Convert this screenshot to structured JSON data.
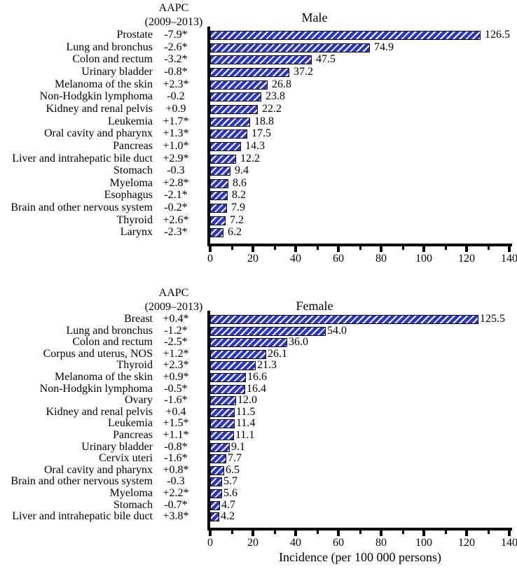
{
  "figure": {
    "aapc_header_line1": "AAPC",
    "aapc_header_line2": "(2009–2013)",
    "xlabel": "Incidence (per 100 000 persons)",
    "colors": {
      "bar_fill": "#2B36C8",
      "bar_hatch": "#FFFFFF",
      "bar_border": "#000000",
      "axis": "#000000",
      "text": "#000000"
    }
  },
  "chart_data": [
    {
      "type": "bar",
      "orientation": "horizontal",
      "title": "Male",
      "value_axis_label": "Incidence (per 100 000 persons)",
      "xlim": [
        0,
        140
      ],
      "xticks": [
        0,
        20,
        40,
        60,
        80,
        100,
        120,
        140
      ],
      "minor_xticks": [
        10,
        30,
        50,
        70,
        90,
        110,
        130
      ],
      "grid": false,
      "rows": [
        {
          "label": "Prostate",
          "aapc": "-7.9*",
          "value": 126.5,
          "display": "126.5"
        },
        {
          "label": "Lung and bronchus",
          "aapc": "-2.6*",
          "value": 74.9,
          "display": "74.9"
        },
        {
          "label": "Colon and rectum",
          "aapc": "-3.2*",
          "value": 47.5,
          "display": "47.5"
        },
        {
          "label": "Urinary bladder",
          "aapc": "-0.8*",
          "value": 37.2,
          "display": "37.2"
        },
        {
          "label": "Melanoma of the skin",
          "aapc": "+2.3*",
          "value": 26.8,
          "display": "26.8"
        },
        {
          "label": "Non-Hodgkin lymphoma",
          "aapc": "-0.2",
          "value": 23.8,
          "display": "23.8"
        },
        {
          "label": "Kidney and renal pelvis",
          "aapc": "+0.9",
          "value": 22.2,
          "display": "22.2"
        },
        {
          "label": "Leukemia",
          "aapc": "+1.7*",
          "value": 18.8,
          "display": "18.8"
        },
        {
          "label": "Oral cavity and pharynx",
          "aapc": "+1.3*",
          "value": 17.5,
          "display": "17.5"
        },
        {
          "label": "Pancreas",
          "aapc": "+1.0*",
          "value": 14.3,
          "display": "14.3"
        },
        {
          "label": "Liver and intrahepatic bile duct",
          "aapc": "+2.9*",
          "value": 12.2,
          "display": "12.2"
        },
        {
          "label": "Stomach",
          "aapc": "-0.3",
          "value": 9.4,
          "display": "9.4"
        },
        {
          "label": "Myeloma",
          "aapc": "+2.8*",
          "value": 8.6,
          "display": "8.6"
        },
        {
          "label": "Esophagus",
          "aapc": "-2.1*",
          "value": 8.2,
          "display": "8.2"
        },
        {
          "label": "Brain and other nervous system",
          "aapc": "-0.2*",
          "value": 7.9,
          "display": "7.9"
        },
        {
          "label": "Thyroid",
          "aapc": "+2.6*",
          "value": 7.2,
          "display": "7.2"
        },
        {
          "label": "Larynx",
          "aapc": "-2.3*",
          "value": 6.2,
          "display": "6.2"
        }
      ]
    },
    {
      "type": "bar",
      "orientation": "horizontal",
      "title": "Female",
      "value_axis_label": "Incidence (per 100 000 persons)",
      "xlim": [
        0,
        140
      ],
      "xticks": [
        0,
        20,
        40,
        60,
        80,
        100,
        120,
        140
      ],
      "minor_xticks": [
        10,
        30,
        50,
        70,
        90,
        110,
        130
      ],
      "grid": false,
      "rows": [
        {
          "label": "Breast",
          "aapc": "+0.4*",
          "value": 125.5,
          "display": "125.5"
        },
        {
          "label": "Lung and bronchus",
          "aapc": "-1.2*",
          "value": 54.0,
          "display": "54.0"
        },
        {
          "label": "Colon and rectum",
          "aapc": "-2.5*",
          "value": 36.0,
          "display": "36.0"
        },
        {
          "label": "Corpus and uterus, NOS",
          "aapc": "+1.2*",
          "value": 26.1,
          "display": "26.1"
        },
        {
          "label": "Thyroid",
          "aapc": "+2.3*",
          "value": 21.3,
          "display": "21.3"
        },
        {
          "label": "Melanoma of the skin",
          "aapc": "+0.9*",
          "value": 16.6,
          "display": "16.6"
        },
        {
          "label": "Non-Hodgkin lymphoma",
          "aapc": "-0.5*",
          "value": 16.4,
          "display": "16.4"
        },
        {
          "label": "Ovary",
          "aapc": "-1.6*",
          "value": 12.0,
          "display": "12.0"
        },
        {
          "label": "Kidney and renal pelvis",
          "aapc": "+0.4",
          "value": 11.5,
          "display": "11.5"
        },
        {
          "label": "Leukemia",
          "aapc": "+1.5*",
          "value": 11.4,
          "display": "11.4"
        },
        {
          "label": "Pancreas",
          "aapc": "+1.1*",
          "value": 11.1,
          "display": "11.1"
        },
        {
          "label": "Urinary bladder",
          "aapc": "-0.8*",
          "value": 9.1,
          "display": "9.1"
        },
        {
          "label": "Cervix uteri",
          "aapc": "-1.6*",
          "value": 7.7,
          "display": "7.7"
        },
        {
          "label": "Oral cavity and pharynx",
          "aapc": "+0.8*",
          "value": 6.5,
          "display": "6.5"
        },
        {
          "label": "Brain and other nervous system",
          "aapc": "-0.3",
          "value": 5.7,
          "display": "5.7"
        },
        {
          "label": "Myeloma",
          "aapc": "+2.2*",
          "value": 5.6,
          "display": "5.6"
        },
        {
          "label": "Stomach",
          "aapc": "-0.7*",
          "value": 4.7,
          "display": "4.7"
        },
        {
          "label": "Liver and intrahepatic bile duct",
          "aapc": "+3.8*",
          "value": 4.2,
          "display": "4.2"
        }
      ]
    }
  ]
}
